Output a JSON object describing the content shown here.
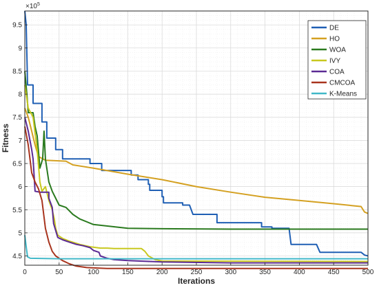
{
  "chart_data": {
    "type": "line",
    "title": "",
    "xlabel": "Iterations",
    "ylabel": "Fitness",
    "y_exponent_label": "×10",
    "y_exponent_power": "5",
    "xlim": [
      0,
      500
    ],
    "ylim": [
      4.3,
      9.8
    ],
    "x_ticks": [
      0,
      50,
      100,
      150,
      200,
      250,
      300,
      350,
      400,
      450,
      500
    ],
    "y_ticks": [
      4.5,
      5,
      5.5,
      6,
      6.5,
      7,
      7.5,
      8,
      8.5,
      9,
      9.5
    ],
    "y_tick_labels": [
      "4.5",
      "5",
      "5.5",
      "6",
      "6.5",
      "7",
      "7.5",
      "8",
      "8.5",
      "9",
      "9.5"
    ],
    "grid": true,
    "legend_position": "top-right",
    "series": [
      {
        "name": "DE",
        "color": "#1f5fb4",
        "points": [
          [
            0,
            9.8
          ],
          [
            2,
            9.5
          ],
          [
            4,
            8.2
          ],
          [
            12,
            8.2
          ],
          [
            12,
            7.8
          ],
          [
            25,
            7.8
          ],
          [
            25,
            7.4
          ],
          [
            32,
            7.4
          ],
          [
            32,
            7.05
          ],
          [
            45,
            7.05
          ],
          [
            45,
            6.8
          ],
          [
            55,
            6.8
          ],
          [
            55,
            6.6
          ],
          [
            95,
            6.6
          ],
          [
            95,
            6.5
          ],
          [
            112,
            6.5
          ],
          [
            112,
            6.35
          ],
          [
            155,
            6.35
          ],
          [
            155,
            6.25
          ],
          [
            165,
            6.25
          ],
          [
            165,
            6.15
          ],
          [
            180,
            6.15
          ],
          [
            180,
            6.05
          ],
          [
            182,
            6.05
          ],
          [
            182,
            5.92
          ],
          [
            200,
            5.92
          ],
          [
            200,
            5.78
          ],
          [
            202,
            5.78
          ],
          [
            202,
            5.65
          ],
          [
            230,
            5.65
          ],
          [
            230,
            5.6
          ],
          [
            240,
            5.6
          ],
          [
            245,
            5.4
          ],
          [
            280,
            5.4
          ],
          [
            280,
            5.22
          ],
          [
            345,
            5.22
          ],
          [
            345,
            5.13
          ],
          [
            360,
            5.13
          ],
          [
            360,
            5.1
          ],
          [
            385,
            5.1
          ],
          [
            388,
            4.75
          ],
          [
            425,
            4.75
          ],
          [
            430,
            4.58
          ],
          [
            490,
            4.58
          ],
          [
            495,
            4.52
          ],
          [
            500,
            4.5
          ]
        ]
      },
      {
        "name": "HO",
        "color": "#d4a020",
        "points": [
          [
            0,
            7.7
          ],
          [
            5,
            7.5
          ],
          [
            10,
            7.2
          ],
          [
            15,
            6.9
          ],
          [
            20,
            6.65
          ],
          [
            30,
            6.57
          ],
          [
            60,
            6.55
          ],
          [
            70,
            6.47
          ],
          [
            100,
            6.4
          ],
          [
            150,
            6.27
          ],
          [
            200,
            6.15
          ],
          [
            250,
            6.0
          ],
          [
            300,
            5.88
          ],
          [
            350,
            5.77
          ],
          [
            400,
            5.7
          ],
          [
            450,
            5.63
          ],
          [
            490,
            5.57
          ],
          [
            495,
            5.45
          ],
          [
            500,
            5.42
          ]
        ]
      },
      {
        "name": "WOA",
        "color": "#2a7a1e",
        "points": [
          [
            0,
            8.5
          ],
          [
            3,
            8.0
          ],
          [
            5,
            7.6
          ],
          [
            12,
            7.6
          ],
          [
            15,
            7.3
          ],
          [
            18,
            7.1
          ],
          [
            22,
            6.4
          ],
          [
            26,
            6.6
          ],
          [
            28,
            7.2
          ],
          [
            30,
            6.6
          ],
          [
            35,
            6.1
          ],
          [
            40,
            5.9
          ],
          [
            45,
            5.75
          ],
          [
            50,
            5.6
          ],
          [
            60,
            5.55
          ],
          [
            70,
            5.4
          ],
          [
            80,
            5.3
          ],
          [
            100,
            5.18
          ],
          [
            150,
            5.1
          ],
          [
            200,
            5.09
          ],
          [
            300,
            5.08
          ],
          [
            500,
            5.08
          ]
        ]
      },
      {
        "name": "IVY",
        "color": "#c8c81e",
        "points": [
          [
            0,
            8.2
          ],
          [
            5,
            7.7
          ],
          [
            12,
            7.5
          ],
          [
            18,
            6.8
          ],
          [
            22,
            6.1
          ],
          [
            25,
            5.9
          ],
          [
            30,
            6.0
          ],
          [
            35,
            5.7
          ],
          [
            40,
            5.5
          ],
          [
            43,
            5.3
          ],
          [
            45,
            5.1
          ],
          [
            48,
            4.95
          ],
          [
            55,
            4.88
          ],
          [
            65,
            4.82
          ],
          [
            80,
            4.75
          ],
          [
            95,
            4.7
          ],
          [
            110,
            4.67
          ],
          [
            120,
            4.67
          ],
          [
            130,
            4.66
          ],
          [
            170,
            4.66
          ],
          [
            175,
            4.6
          ],
          [
            180,
            4.5
          ],
          [
            190,
            4.42
          ],
          [
            200,
            4.39
          ],
          [
            500,
            4.38
          ]
        ]
      },
      {
        "name": "COA",
        "color": "#5b2a94",
        "points": [
          [
            0,
            7.5
          ],
          [
            5,
            7.2
          ],
          [
            10,
            6.8
          ],
          [
            12,
            6.6
          ],
          [
            15,
            5.9
          ],
          [
            22,
            5.88
          ],
          [
            35,
            5.88
          ],
          [
            35,
            5.75
          ],
          [
            40,
            5.55
          ],
          [
            42,
            5.2
          ],
          [
            48,
            4.9
          ],
          [
            55,
            4.85
          ],
          [
            65,
            4.8
          ],
          [
            75,
            4.75
          ],
          [
            85,
            4.72
          ],
          [
            95,
            4.68
          ],
          [
            100,
            4.62
          ],
          [
            108,
            4.58
          ],
          [
            110,
            4.5
          ],
          [
            120,
            4.45
          ],
          [
            130,
            4.42
          ],
          [
            150,
            4.4
          ],
          [
            200,
            4.37
          ],
          [
            300,
            4.35
          ],
          [
            500,
            4.35
          ]
        ]
      },
      {
        "name": "CMCOA",
        "color": "#a8341e",
        "points": [
          [
            0,
            7.3
          ],
          [
            5,
            6.9
          ],
          [
            10,
            6.3
          ],
          [
            15,
            6.1
          ],
          [
            20,
            5.95
          ],
          [
            25,
            5.7
          ],
          [
            30,
            5.1
          ],
          [
            35,
            4.8
          ],
          [
            40,
            4.6
          ],
          [
            45,
            4.5
          ],
          [
            55,
            4.4
          ],
          [
            65,
            4.33
          ],
          [
            75,
            4.28
          ],
          [
            90,
            4.25
          ],
          [
            120,
            4.23
          ],
          [
            500,
            4.23
          ]
        ]
      },
      {
        "name": "K-Means",
        "color": "#40b8c8",
        "points": [
          [
            0,
            4.95
          ],
          [
            2,
            4.7
          ],
          [
            4,
            4.48
          ],
          [
            8,
            4.45
          ],
          [
            50,
            4.44
          ],
          [
            500,
            4.44
          ]
        ]
      }
    ]
  }
}
